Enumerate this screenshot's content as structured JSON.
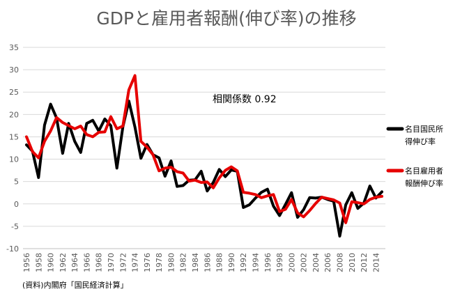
{
  "chart_data": {
    "type": "line",
    "title": "GDPと雇用者報酬(伸び率)の推移",
    "annotation": "相関係数 0.92",
    "source_note": "(資料)内閣府「国民経済計算」",
    "ylim": [
      -10,
      35
    ],
    "y_ticks": [
      35,
      30,
      25,
      20,
      15,
      10,
      5,
      0,
      -5,
      -10
    ],
    "x_ticks": [
      1956,
      1958,
      1960,
      1962,
      1964,
      1966,
      1968,
      1970,
      1972,
      1974,
      1976,
      1978,
      1980,
      1982,
      1984,
      1986,
      1988,
      1990,
      1992,
      1994,
      1996,
      1998,
      2000,
      2002,
      2004,
      2006,
      2008,
      2010,
      2012,
      2014
    ],
    "grid": true,
    "legend_position": "right",
    "x": [
      1956,
      1957,
      1958,
      1959,
      1960,
      1961,
      1962,
      1963,
      1964,
      1965,
      1966,
      1967,
      1968,
      1969,
      1970,
      1971,
      1972,
      1973,
      1974,
      1975,
      1976,
      1977,
      1978,
      1979,
      1980,
      1981,
      1982,
      1983,
      1984,
      1985,
      1986,
      1987,
      1988,
      1989,
      1990,
      1991,
      1992,
      1993,
      1994,
      1995,
      1996,
      1997,
      1998,
      1999,
      2000,
      2001,
      2002,
      2003,
      2004,
      2005,
      2006,
      2007,
      2008,
      2009,
      2010,
      2011,
      2012,
      2013,
      2014,
      2015
    ],
    "series": [
      {
        "name": "名目国民所得伸び率",
        "legend_lines": [
          "名目国民所",
          "得伸び率"
        ],
        "color": "#000000",
        "values": [
          13.2,
          11.8,
          5.9,
          17.6,
          22.3,
          19.2,
          11.3,
          18.0,
          14.0,
          11.5,
          18.0,
          18.7,
          16.3,
          19.0,
          17.5,
          8.0,
          17.2,
          23.0,
          17.2,
          10.2,
          13.3,
          11.0,
          10.3,
          6.2,
          9.6,
          3.9,
          4.1,
          5.3,
          5.4,
          7.3,
          2.9,
          4.8,
          7.7,
          6.1,
          7.6,
          7.3,
          -0.8,
          -0.2,
          1.3,
          2.6,
          3.3,
          -0.5,
          -2.6,
          -0.1,
          2.5,
          -3.0,
          -1.3,
          1.4,
          1.3,
          1.5,
          1.0,
          0.6,
          -7.2,
          -0.2,
          2.5,
          -1.0,
          0.2,
          4.0,
          1.3,
          2.7
        ]
      },
      {
        "name": "名目雇用者報酬伸び率",
        "legend_lines": [
          "名目雇用者",
          "報酬伸び率"
        ],
        "color": "#e60000",
        "values": [
          15.0,
          11.7,
          10.3,
          14.0,
          16.3,
          19.3,
          18.2,
          17.5,
          16.8,
          17.4,
          15.5,
          15.0,
          16.0,
          16.1,
          19.5,
          16.8,
          17.4,
          25.5,
          28.7,
          14.0,
          12.7,
          11.0,
          7.4,
          8.0,
          8.2,
          7.2,
          6.9,
          5.1,
          5.3,
          4.8,
          4.9,
          3.6,
          5.8,
          7.5,
          8.3,
          7.4,
          2.6,
          2.4,
          2.1,
          1.4,
          1.8,
          2.1,
          -1.7,
          -1.2,
          1.0,
          -2.0,
          -2.9,
          -1.5,
          0.1,
          1.5,
          1.2,
          0.9,
          0.2,
          -4.2,
          0.5,
          0.3,
          0.0,
          1.0,
          1.5,
          1.7
        ]
      }
    ]
  }
}
